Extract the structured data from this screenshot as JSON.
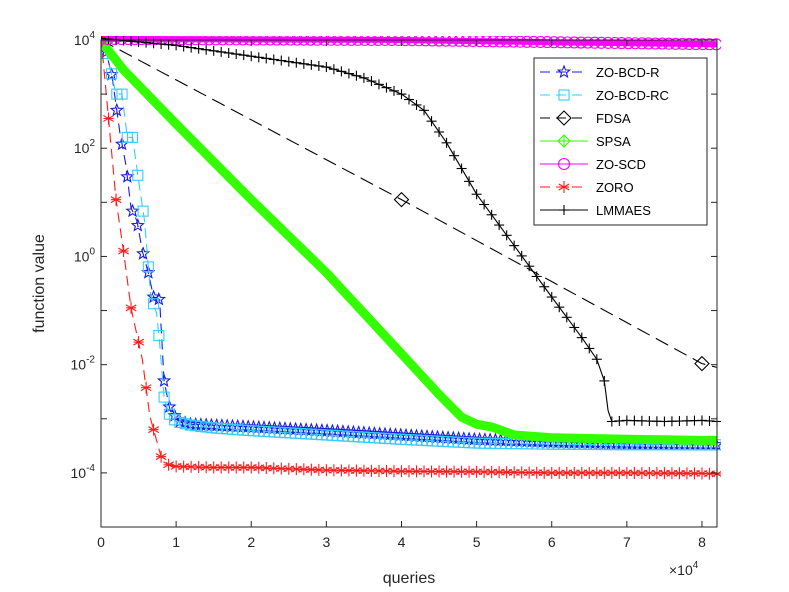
{
  "chart_data": {
    "type": "line",
    "title": "",
    "xlabel": "queries",
    "ylabel": "function value",
    "x_scale": "linear",
    "y_scale": "log",
    "xlim": [
      0,
      82000
    ],
    "ylim_exp": [
      -5,
      4
    ],
    "x_ticks": [
      0,
      10000,
      20000,
      30000,
      40000,
      50000,
      60000,
      70000,
      80000
    ],
    "x_tick_labels": [
      "0",
      "1",
      "2",
      "3",
      "4",
      "5",
      "6",
      "7",
      "8"
    ],
    "x_multiplier": {
      "base": "×10",
      "exp": "4"
    },
    "y_tick_exps": [
      -4,
      -2,
      0,
      2,
      4
    ],
    "y_tick_base": "10",
    "y_tick_exp_labels": [
      "-4",
      "-2",
      "0",
      "2",
      "4"
    ],
    "legend_position": "top-right",
    "series": [
      {
        "name": "ZO-BCD-R",
        "color": "#1a1ae6",
        "marker": "star",
        "dash": "10,6",
        "x": [
          0,
          1500,
          2500,
          3300,
          4000,
          4800,
          5500,
          6300,
          7000,
          7800,
          8400,
          9200,
          10500,
          12000,
          15000,
          20000,
          30000,
          40000,
          50000,
          60000,
          70000,
          80000,
          82000
        ],
        "y": [
          -0.2,
          0.7,
          1.7,
          2.3,
          3.1,
          3.35,
          3.9,
          4.3,
          4.75,
          4.8,
          6.3,
          6.85,
          7.05,
          7.1,
          7.12,
          7.15,
          7.22,
          7.3,
          7.38,
          7.43,
          7.46,
          7.48,
          7.48
        ],
        "markers_every": 700
      },
      {
        "name": "ZO-BCD-RC",
        "color": "#33ccff",
        "marker": "square",
        "dash": "10,6",
        "x": [
          0,
          1200,
          2000,
          2800,
          3500,
          4200,
          5000,
          5800,
          6600,
          7400,
          7800,
          8400,
          9000,
          10000,
          12000,
          15000,
          20000,
          30000,
          40000,
          50000,
          60000,
          70000,
          80000,
          82000
        ],
        "y": [
          -0.1,
          0.5,
          1.0,
          1.0,
          1.8,
          1.8,
          2.6,
          3.35,
          4.7,
          5.05,
          5.6,
          6.6,
          6.9,
          7.05,
          7.12,
          7.17,
          7.22,
          7.3,
          7.38,
          7.45,
          7.47,
          7.48,
          7.48,
          7.48
        ],
        "markers_every": 700
      },
      {
        "name": "FDSA",
        "color": "#000000",
        "marker": "diamond",
        "dash": "14,7",
        "x": [
          0,
          40000,
          80000,
          82000
        ],
        "y": [
          0,
          2.95,
          5.98,
          6.05
        ],
        "markers_at": [
          0,
          40000,
          80000
        ]
      },
      {
        "name": "SPSA",
        "color": "#33ff00",
        "marker": "none",
        "dash": "",
        "x": [
          0,
          3000,
          10000,
          20000,
          30000,
          40000,
          45000,
          48000,
          50000,
          52000,
          55000,
          60000,
          70000,
          80000,
          82000
        ],
        "y": [
          0.02,
          0.55,
          1.55,
          2.95,
          4.3,
          5.8,
          6.55,
          6.97,
          7.1,
          7.15,
          7.3,
          7.35,
          7.38,
          7.4,
          7.4
        ],
        "thick": 9
      },
      {
        "name": "ZO-SCD",
        "color": "#ff00ff",
        "marker": "circle",
        "dash": "",
        "x": [
          0,
          20000,
          40000,
          60000,
          82000
        ],
        "y": [
          -0.02,
          -0.01,
          0.0,
          0.04,
          0.08
        ],
        "thick": 6,
        "markers_every": 900
      },
      {
        "name": "ZORO",
        "color": "#ff1a1a",
        "marker": "asterisk",
        "dash": "10,6",
        "x": [
          0,
          2000,
          3000,
          4000,
          5500,
          6500,
          8000,
          9000,
          10000,
          15000,
          20000,
          30000,
          40000,
          50000,
          60000,
          70000,
          80000,
          82000
        ],
        "y": [
          -0.05,
          2.95,
          3.9,
          4.95,
          5.9,
          6.95,
          7.7,
          7.85,
          7.88,
          7.9,
          7.9,
          7.95,
          7.97,
          7.98,
          8.0,
          8.0,
          8.01,
          8.02
        ],
        "markers_every": 1000
      },
      {
        "name": "LMMAES",
        "color": "#000000",
        "marker": "plus",
        "dash": "",
        "x": [
          0,
          10000,
          20000,
          30000,
          35000,
          40000,
          43000,
          46000,
          50000,
          55000,
          60000,
          64000,
          66000,
          67000,
          67500,
          68000,
          70000,
          75000,
          80000,
          82000
        ],
        "y": [
          -0.03,
          0.1,
          0.3,
          0.5,
          0.7,
          1.0,
          1.3,
          1.9,
          2.85,
          3.8,
          4.75,
          5.5,
          5.9,
          6.3,
          6.85,
          7.05,
          7.03,
          7.05,
          7.03,
          7.05
        ],
        "markers_every": 1000
      }
    ]
  }
}
